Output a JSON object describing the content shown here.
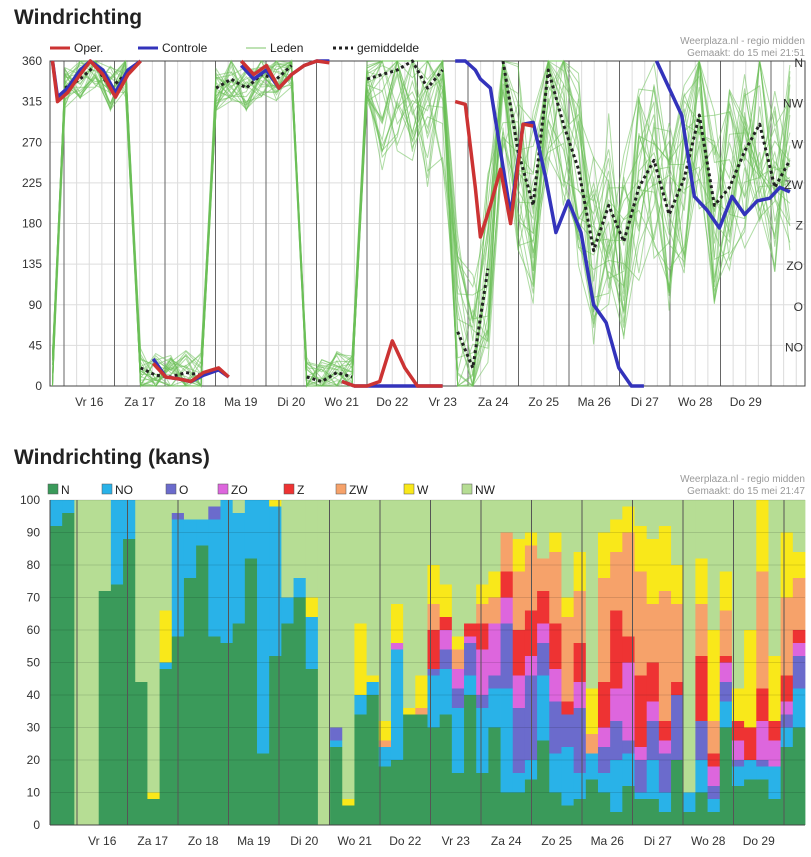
{
  "chart_data": [
    {
      "type": "line",
      "title": "Windrichting",
      "source": "Weerplaza.nl - regio midden",
      "made": "Gemaakt: do 15 mei 21:51",
      "ylim": [
        0,
        360
      ],
      "yticks": [
        "0",
        "45",
        "90",
        "135",
        "180",
        "225",
        "270",
        "315",
        "360"
      ],
      "ytick_values": [
        0,
        45,
        90,
        135,
        180,
        225,
        270,
        315,
        360
      ],
      "right_labels": [
        "N",
        "NW",
        "W",
        "ZW",
        "Z",
        "ZO",
        "O",
        "NO"
      ],
      "right_label_values": [
        360,
        315,
        270,
        225,
        180,
        135,
        90,
        45
      ],
      "days": [
        "Vr 16",
        "Za 17",
        "Zo 18",
        "Ma 19",
        "Di 20",
        "Wo 21",
        "Do 22",
        "Vr 23",
        "Za 24",
        "Zo 25",
        "Ma 26",
        "Di 27",
        "Wo 28",
        "Do 29"
      ],
      "legend": [
        {
          "name": "Oper.",
          "color": "#cc3333"
        },
        {
          "name": "Controle",
          "color": "#3333bb"
        },
        {
          "name": "Leden",
          "color": "#7cc46a"
        },
        {
          "name": "gemiddelde",
          "color": "#222222"
        }
      ],
      "xlim": [
        0,
        15
      ],
      "series": [
        {
          "name": "Oper.",
          "x": [
            0.05,
            0.15,
            0.35,
            0.6,
            0.8,
            1.05,
            1.3,
            1.55,
            1.8,
            2.05,
            2.3,
            2.55,
            2.8,
            3.05,
            3.35,
            3.55,
            3.8,
            4.05,
            4.3,
            4.55,
            4.8,
            5.05,
            5.3,
            5.55,
            5.8,
            6.05,
            6.2,
            6.3,
            6.55,
            6.8,
            7.05,
            7.3,
            7.55,
            7.8,
            8.05,
            8.25,
            8.45,
            8.55,
            8.75,
            8.95,
            9.15,
            9.4,
            9.6
          ],
          "y": [
            360,
            315,
            325,
            345,
            360,
            345,
            320,
            345,
            360,
            25,
            10,
            8,
            5,
            15,
            20,
            10,
            360,
            345,
            355,
            330,
            345,
            355,
            360,
            358,
            5,
            0,
            0,
            0,
            5,
            50,
            20,
            0,
            0,
            0,
            315,
            312,
            220,
            165,
            200,
            240,
            180,
            290,
            288
          ]
        },
        {
          "name": "Controle",
          "x": [
            0.05,
            0.15,
            0.35,
            0.6,
            0.8,
            1.05,
            1.3,
            1.55,
            1.8,
            2.05,
            2.3,
            2.55,
            2.8,
            3.05,
            3.35,
            3.55,
            3.8,
            4.05,
            4.3,
            4.55,
            4.8,
            5.05,
            5.3,
            5.55,
            5.8,
            6.05,
            6.3,
            6.55,
            6.8,
            7.05,
            7.3,
            7.55,
            7.8,
            8.05,
            8.25,
            8.45,
            8.55,
            8.75,
            8.95,
            9.15,
            9.4,
            9.6,
            9.85,
            10.05,
            10.3,
            10.55,
            10.8,
            11.05,
            11.3,
            11.55,
            11.8,
            12.05,
            12.3,
            12.55,
            12.8,
            13.05,
            13.3,
            13.55,
            13.8,
            14.05,
            14.3,
            14.5,
            14.7
          ],
          "y": [
            360,
            320,
            330,
            350,
            360,
            350,
            325,
            350,
            360,
            30,
            10,
            8,
            5,
            12,
            18,
            10,
            355,
            340,
            350,
            330,
            345,
            355,
            360,
            360,
            5,
            0,
            0,
            0,
            0,
            0,
            0,
            0,
            0,
            360,
            360,
            350,
            340,
            330,
            260,
            190,
            290,
            292,
            230,
            170,
            205,
            170,
            90,
            70,
            20,
            0,
            0,
            360,
            330,
            300,
            210,
            195,
            175,
            210,
            190,
            205,
            208,
            220,
            215
          ]
        },
        {
          "name": "gemiddelde",
          "x": [
            0.05,
            0.3,
            0.6,
            0.9,
            1.2,
            1.5,
            1.8,
            2.1,
            2.4,
            2.7,
            3.0,
            3.3,
            3.6,
            3.9,
            4.2,
            4.5,
            4.8,
            5.1,
            5.4,
            5.7,
            6.0,
            6.3,
            6.6,
            6.9,
            7.2,
            7.5,
            7.8,
            8.1,
            8.4,
            8.7,
            9.0,
            9.3,
            9.6,
            9.9,
            10.2,
            10.5,
            10.8,
            11.1,
            11.4,
            11.7,
            12.0,
            12.3,
            12.6,
            12.9,
            13.2,
            13.5,
            13.8,
            14.1,
            14.4,
            14.7
          ],
          "y": [
            15,
            330,
            340,
            355,
            330,
            345,
            20,
            12,
            10,
            15,
            12,
            330,
            340,
            330,
            345,
            340,
            355,
            10,
            5,
            15,
            10,
            340,
            345,
            350,
            360,
            330,
            350,
            60,
            20,
            130,
            360,
            260,
            200,
            350,
            290,
            240,
            150,
            200,
            160,
            220,
            250,
            190,
            230,
            300,
            200,
            220,
            260,
            290,
            220,
            250
          ]
        }
      ]
    },
    {
      "type": "bar",
      "stacked": true,
      "title": "Windrichting (kans)",
      "source": "Weerplaza.nl - regio midden",
      "made": "Gemaakt: do 15 mei 21:47",
      "ylim": [
        0,
        100
      ],
      "yticks": [
        "0",
        "10",
        "20",
        "30",
        "40",
        "50",
        "60",
        "70",
        "80",
        "90",
        "100"
      ],
      "ytick_values": [
        0,
        10,
        20,
        30,
        40,
        50,
        60,
        70,
        80,
        90,
        100
      ],
      "days": [
        "Vr 16",
        "Za 17",
        "Zo 18",
        "Ma 19",
        "Di 20",
        "Wo 21",
        "Do 22",
        "Vr 23",
        "Za 24",
        "Zo 25",
        "Ma 26",
        "Di 27",
        "Wo 28",
        "Do 29"
      ],
      "legend": [
        {
          "name": "N",
          "color": "#3a9a5a"
        },
        {
          "name": "NO",
          "color": "#29b2e8"
        },
        {
          "name": "O",
          "color": "#6b6bcc"
        },
        {
          "name": "ZO",
          "color": "#dd66dd"
        },
        {
          "name": "Z",
          "color": "#ee3333"
        },
        {
          "name": "ZW",
          "color": "#f6a26a"
        },
        {
          "name": "W",
          "color": "#f9e81a"
        },
        {
          "name": "NW",
          "color": "#b6dd94"
        }
      ],
      "bars": [
        [
          92,
          8,
          0,
          0,
          0,
          0,
          0,
          0
        ],
        [
          96,
          4,
          0,
          0,
          0,
          0,
          0,
          0
        ],
        [
          0,
          0,
          0,
          0,
          0,
          0,
          0,
          100
        ],
        [
          0,
          0,
          0,
          0,
          0,
          0,
          0,
          100
        ],
        [
          72,
          0,
          0,
          0,
          0,
          0,
          0,
          28
        ],
        [
          74,
          26,
          0,
          0,
          0,
          0,
          0,
          0
        ],
        [
          88,
          12,
          0,
          0,
          0,
          0,
          0,
          0
        ],
        [
          44,
          0,
          0,
          0,
          0,
          0,
          0,
          56
        ],
        [
          8,
          0,
          0,
          0,
          0,
          0,
          2,
          90
        ],
        [
          48,
          2,
          0,
          0,
          0,
          0,
          16,
          34
        ],
        [
          58,
          36,
          2,
          0,
          0,
          0,
          0,
          4
        ],
        [
          76,
          18,
          0,
          0,
          0,
          0,
          0,
          6
        ],
        [
          86,
          8,
          0,
          0,
          0,
          0,
          0,
          6
        ],
        [
          58,
          36,
          4,
          0,
          0,
          0,
          0,
          2
        ],
        [
          56,
          44,
          0,
          0,
          0,
          0,
          0,
          0
        ],
        [
          62,
          34,
          0,
          0,
          0,
          0,
          0,
          4
        ],
        [
          82,
          18,
          0,
          0,
          0,
          0,
          0,
          0
        ],
        [
          22,
          78,
          0,
          0,
          0,
          0,
          0,
          0
        ],
        [
          52,
          46,
          0,
          0,
          0,
          0,
          2,
          0
        ],
        [
          62,
          8,
          0,
          0,
          0,
          0,
          0,
          30
        ],
        [
          70,
          6,
          0,
          0,
          0,
          0,
          0,
          24
        ],
        [
          48,
          16,
          0,
          0,
          0,
          0,
          6,
          30
        ],
        [
          0,
          0,
          0,
          0,
          0,
          0,
          0,
          100
        ],
        [
          24,
          2,
          4,
          0,
          0,
          0,
          0,
          70
        ],
        [
          6,
          0,
          0,
          0,
          0,
          0,
          2,
          92
        ],
        [
          34,
          6,
          0,
          0,
          0,
          0,
          22,
          38
        ],
        [
          40,
          4,
          0,
          0,
          0,
          0,
          2,
          54
        ],
        [
          18,
          6,
          0,
          0,
          0,
          2,
          6,
          68
        ],
        [
          20,
          34,
          0,
          2,
          0,
          0,
          12,
          32
        ],
        [
          34,
          0,
          0,
          0,
          0,
          0,
          2,
          64
        ],
        [
          34,
          0,
          0,
          0,
          0,
          2,
          10,
          54
        ],
        [
          30,
          16,
          2,
          0,
          12,
          8,
          12,
          20
        ],
        [
          34,
          14,
          6,
          6,
          4,
          0,
          10,
          26
        ],
        [
          16,
          20,
          6,
          6,
          0,
          6,
          4,
          42
        ],
        [
          40,
          6,
          10,
          2,
          4,
          0,
          0,
          38
        ],
        [
          16,
          20,
          4,
          14,
          8,
          6,
          6,
          26
        ],
        [
          30,
          12,
          4,
          16,
          0,
          8,
          8,
          22
        ],
        [
          10,
          32,
          20,
          8,
          8,
          12,
          0,
          10
        ],
        [
          10,
          6,
          20,
          10,
          14,
          18,
          10,
          12
        ],
        [
          14,
          6,
          26,
          6,
          14,
          20,
          4,
          10
        ],
        [
          26,
          20,
          10,
          6,
          10,
          10,
          0,
          18
        ],
        [
          10,
          12,
          16,
          10,
          14,
          22,
          6,
          10
        ],
        [
          6,
          18,
          10,
          0,
          4,
          26,
          6,
          30
        ],
        [
          8,
          8,
          20,
          8,
          12,
          16,
          12,
          16
        ],
        [
          14,
          8,
          0,
          0,
          0,
          6,
          14,
          58
        ],
        [
          10,
          6,
          8,
          6,
          14,
          32,
          14,
          10
        ],
        [
          4,
          16,
          12,
          10,
          24,
          18,
          10,
          6
        ],
        [
          12,
          10,
          4,
          24,
          8,
          32,
          8,
          2
        ],
        [
          8,
          2,
          10,
          4,
          22,
          32,
          14,
          8
        ],
        [
          8,
          12,
          12,
          6,
          12,
          18,
          20,
          12
        ],
        [
          4,
          6,
          12,
          4,
          6,
          40,
          20,
          8
        ],
        [
          20,
          0,
          20,
          0,
          4,
          24,
          12,
          20
        ],
        [
          4,
          6,
          0,
          0,
          0,
          0,
          0,
          90
        ],
        [
          10,
          10,
          12,
          0,
          20,
          16,
          14,
          18
        ],
        [
          4,
          4,
          4,
          6,
          4,
          10,
          28,
          40
        ],
        [
          30,
          8,
          6,
          6,
          2,
          14,
          12,
          22
        ],
        [
          12,
          6,
          2,
          6,
          6,
          0,
          10,
          58
        ],
        [
          14,
          6,
          0,
          0,
          10,
          0,
          30,
          40
        ],
        [
          14,
          4,
          2,
          12,
          10,
          36,
          22,
          0
        ],
        [
          8,
          10,
          0,
          8,
          6,
          0,
          20,
          48
        ],
        [
          24,
          6,
          4,
          4,
          8,
          24,
          20,
          10
        ],
        [
          30,
          12,
          10,
          4,
          4,
          16,
          8,
          16
        ]
      ]
    }
  ]
}
